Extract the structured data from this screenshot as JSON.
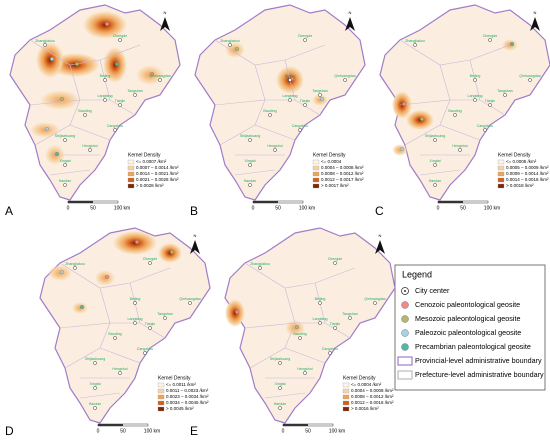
{
  "panels": [
    {
      "letter": "A",
      "legend": {
        "title": "Kernel Density",
        "classes": [
          "<= 0.0007 /km²",
          "0.0007 – 0.0014 /km²",
          "0.0014 – 0.0021 /km²",
          "0.0021 – 0.0028 /km²",
          "> 0.0028 /km²"
        ]
      }
    },
    {
      "letter": "B",
      "legend": {
        "title": "Kernel Density",
        "classes": [
          "<= 0.0004",
          "0.0004 – 0.0008 /km²",
          "0.0008 – 0.0012 /km²",
          "0.0012 – 0.0017 /km²",
          "> 0.0017 /km²"
        ]
      }
    },
    {
      "letter": "C",
      "legend": {
        "title": "Kernel Density",
        "classes": [
          "<= 0.0005 /km²",
          "0.0005 – 0.0009 /km²",
          "0.0009 – 0.0014 /km²",
          "0.0014 – 0.0018 /km²",
          "> 0.0018 /km²"
        ]
      }
    },
    {
      "letter": "D",
      "legend": {
        "title": "Kernel Density",
        "classes": [
          "<= 0.0011 /km²",
          "0.0011 – 0.0023 /km²",
          "0.0023 – 0.0034 /km²",
          "0.0034 – 0.0045 /km²",
          "> 0.0045 /km²"
        ]
      }
    },
    {
      "letter": "E",
      "legend": {
        "title": "Kernel Density",
        "classes": [
          "<= 0.0004 /km²",
          "0.0004 – 0.0008 /km²",
          "0.0008 – 0.0012 /km²",
          "0.0012 – 0.0016 /km²",
          "> 0.0016 /km²"
        ]
      }
    }
  ],
  "class_colors": [
    "#fdf3e8",
    "#f7d4a6",
    "#efa35a",
    "#d2601c",
    "#7e2608"
  ],
  "cities": [
    "Zhangjiakou",
    "Chengde",
    "Beijing",
    "Tangshan",
    "Qinhuangdao",
    "Langfang",
    "Tianjin",
    "Baoding",
    "Cangzhou",
    "Shijiazhuang",
    "Hengshui",
    "Xingtai",
    "Handan"
  ],
  "scale": [
    "0",
    "50",
    "100 km"
  ],
  "north": "N",
  "legend": {
    "title": "Legend",
    "items": [
      "City center",
      "Cenozoic paleontological geosite",
      "Mesozoic paleontological geosite",
      "Paleozoic paleontological geosite",
      "Precambrian paleontological geosite",
      "Provincial-level administrative boundary",
      "Prefecture-level administrative boundary"
    ]
  }
}
